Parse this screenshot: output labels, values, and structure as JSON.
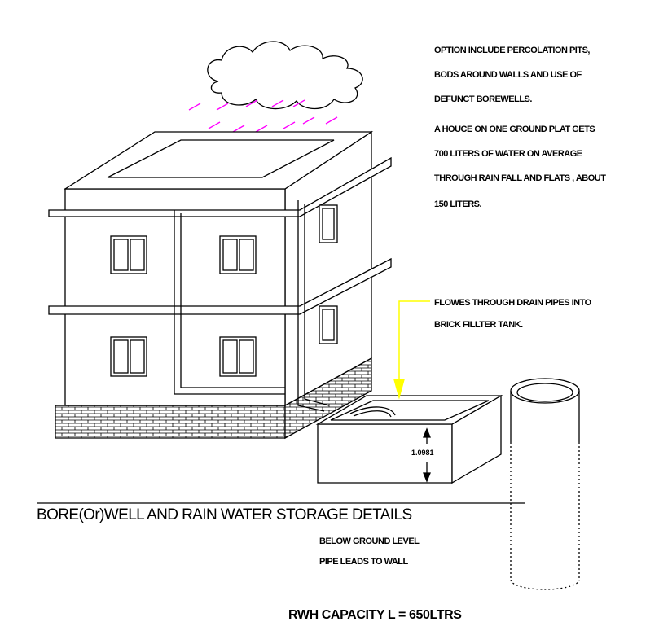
{
  "notes": {
    "options": [
      "OPTION INCLUDE PERCOLATION PITS,",
      "BODS AROUND WALLS AND USE OF",
      "DEFUNCT BOREWELLS."
    ],
    "average": [
      "A HOUCE ON ONE GROUND PLAT GETS",
      "700 LITERS OF WATER ON AVERAGE",
      "THROUGH RAIN FALL AND FLATS , ABOUT",
      "150 LITERS."
    ],
    "flow": [
      "FLOWES THROUGH DRAIN PIPES INTO",
      "BRICK FILLTER TANK."
    ],
    "below": [
      "BELOW GROUND LEVEL",
      "PIPE LEADS TO WALL"
    ]
  },
  "title": "BORE(Or)WELL AND RAIN WATER STORAGE DETAILS",
  "dimension": "1.0981",
  "capacity": "RWH  CAPACITY  L = 650LTRS",
  "colors": {
    "rain": "#ff00ff",
    "arrow": "#ffff00",
    "line": "#000000",
    "background": "#ffffff"
  }
}
